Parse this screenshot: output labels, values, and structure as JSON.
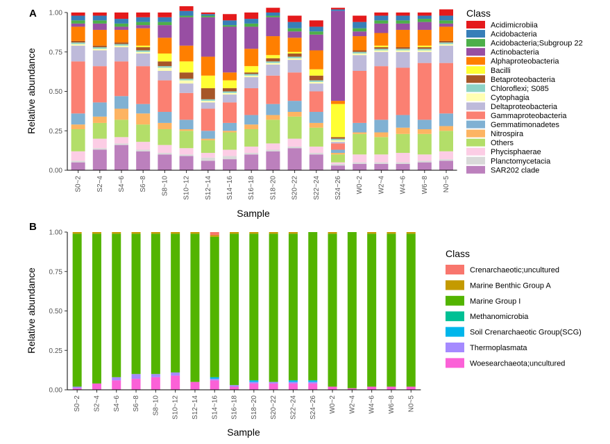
{
  "colors": {
    "Acidimicrobiia": "#e41a1c",
    "Acidobacteria": "#377eb8",
    "Acidobacteria;Subgroup 22": "#4daf4a",
    "Actinobacteria": "#984ea3",
    "Alphaproteobacteria": "#ff7f00",
    "Bacilli": "#ffff33",
    "Betaproteobacteria": "#a65628",
    "Chloroflexi; S085": "#8dd3c7",
    "Cytophagia": "#ffffb3",
    "Deltaproteobacteria": "#bebada",
    "Gammaproteobacteria": "#fb8072",
    "Gemmatimonadetes": "#80b1d3",
    "Nitrospira": "#fdb462",
    "Others": "#b3de69",
    "Phycisphaerae": "#fccde5",
    "Planctomycetacia": "#d9d9d9",
    "SAR202 clade": "#bc80bd",
    "Crenarchaeotic;uncultured": "#f8766d",
    "Marine Benthic Group A": "#c49a00",
    "Marine Group I": "#53b400",
    "Methanomicrobia": "#00c094",
    "Soil Crenarchaeotic Group(SCG)": "#00b6eb",
    "Thermoplasmata": "#a58aff",
    "Woesearchaeota;uncultured": "#fb61d7"
  },
  "chart_data": [
    {
      "type": "bar",
      "stacked": true,
      "panel": "A",
      "xlabel": "Sample",
      "ylabel": "Relative abundance",
      "ylim": [
        0,
        1
      ],
      "yticks": [
        "0.00",
        "0.25",
        "0.50",
        "0.75",
        "1.00"
      ],
      "categories": [
        "S0~2",
        "S2~4",
        "S4~6",
        "S6~8",
        "S8~10",
        "S10~12",
        "S12~14",
        "S14~16",
        "S16~18",
        "S18~20",
        "S20~22",
        "S22~24",
        "S24~26",
        "W0~2",
        "W2~4",
        "W4~6",
        "W6~8",
        "N0~5"
      ],
      "legend_title": "Class",
      "legend_order": [
        "Acidimicrobiia",
        "Acidobacteria",
        "Acidobacteria;Subgroup 22",
        "Actinobacteria",
        "Alphaproteobacteria",
        "Bacilli",
        "Betaproteobacteria",
        "Chloroflexi; S085",
        "Cytophagia",
        "Deltaproteobacteria",
        "Gammaproteobacteria",
        "Gemmatimonadetes",
        "Nitrospira",
        "Others",
        "Phycisphaerae",
        "Planctomycetacia",
        "SAR202 clade"
      ],
      "series": [
        {
          "name": "SAR202 clade",
          "values": [
            0.05,
            0.13,
            0.16,
            0.12,
            0.1,
            0.09,
            0.06,
            0.07,
            0.1,
            0.12,
            0.14,
            0.1,
            0.03,
            0.04,
            0.04,
            0.04,
            0.05,
            0.06
          ]
        },
        {
          "name": "Planctomycetacia",
          "values": [
            0.01,
            0.01,
            0.01,
            0.01,
            0.01,
            0.01,
            0.02,
            0.02,
            0.01,
            0.01,
            0.01,
            0.01,
            0.01,
            0.01,
            0.01,
            0.01,
            0.01,
            0.01
          ]
        },
        {
          "name": "Phycisphaerae",
          "values": [
            0.06,
            0.06,
            0.04,
            0.05,
            0.05,
            0.04,
            0.03,
            0.04,
            0.04,
            0.04,
            0.05,
            0.04,
            0.01,
            0.05,
            0.05,
            0.06,
            0.04,
            0.05
          ]
        },
        {
          "name": "Others",
          "values": [
            0.14,
            0.1,
            0.11,
            0.11,
            0.1,
            0.11,
            0.08,
            0.11,
            0.11,
            0.15,
            0.14,
            0.12,
            0.05,
            0.13,
            0.11,
            0.12,
            0.13,
            0.13
          ]
        },
        {
          "name": "Nitrospira",
          "values": [
            0.03,
            0.04,
            0.07,
            0.07,
            0.04,
            0.01,
            0.01,
            0.01,
            0.03,
            0.03,
            0.03,
            0.03,
            0.01,
            0.01,
            0.03,
            0.04,
            0.03,
            0.03
          ]
        },
        {
          "name": "Gemmatimonadetes",
          "values": [
            0.07,
            0.09,
            0.08,
            0.06,
            0.07,
            0.06,
            0.05,
            0.05,
            0.06,
            0.07,
            0.07,
            0.07,
            0.02,
            0.06,
            0.08,
            0.08,
            0.06,
            0.08
          ]
        },
        {
          "name": "Gammaproteobacteria",
          "values": [
            0.33,
            0.23,
            0.22,
            0.24,
            0.2,
            0.17,
            0.14,
            0.13,
            0.17,
            0.18,
            0.18,
            0.13,
            0.04,
            0.33,
            0.34,
            0.3,
            0.36,
            0.32
          ]
        },
        {
          "name": "Deltaproteobacteria",
          "values": [
            0.1,
            0.1,
            0.09,
            0.08,
            0.06,
            0.06,
            0.04,
            0.05,
            0.07,
            0.07,
            0.08,
            0.05,
            0.01,
            0.1,
            0.09,
            0.1,
            0.07,
            0.11
          ]
        },
        {
          "name": "Cytophagia",
          "values": [
            0.01,
            0.01,
            0.01,
            0.01,
            0.02,
            0.02,
            0.01,
            0.01,
            0.01,
            0.01,
            0.01,
            0.01,
            0.01,
            0.01,
            0.01,
            0.01,
            0.01,
            0.01
          ]
        },
        {
          "name": "Chloroflexi; S085",
          "values": [
            0.01,
            0.01,
            0.01,
            0.01,
            0.01,
            0.01,
            0.01,
            0.01,
            0.01,
            0.01,
            0.01,
            0.01,
            0.01,
            0.01,
            0.01,
            0.01,
            0.01,
            0.01
          ]
        },
        {
          "name": "Betaproteobacteria",
          "values": [
            0.01,
            0.01,
            0.01,
            0.02,
            0.03,
            0.04,
            0.07,
            0.02,
            0.01,
            0.02,
            0.02,
            0.03,
            0.01,
            0.01,
            0.01,
            0.01,
            0.01,
            0.01
          ]
        },
        {
          "name": "Bacilli",
          "values": [
            0.0,
            0.0,
            0.0,
            0.01,
            0.05,
            0.07,
            0.08,
            0.05,
            0.04,
            0.02,
            0.01,
            0.04,
            0.21,
            0.0,
            0.01,
            0.0,
            0.01,
            0.0
          ]
        },
        {
          "name": "Alphaproteobacteria",
          "values": [
            0.09,
            0.1,
            0.08,
            0.11,
            0.1,
            0.1,
            0.12,
            0.05,
            0.11,
            0.12,
            0.09,
            0.12,
            0.02,
            0.09,
            0.08,
            0.11,
            0.1,
            0.09
          ]
        },
        {
          "name": "Actinobacteria",
          "values": [
            0.02,
            0.04,
            0.02,
            0.02,
            0.08,
            0.18,
            0.25,
            0.29,
            0.14,
            0.12,
            0.04,
            0.1,
            0.57,
            0.03,
            0.06,
            0.04,
            0.05,
            0.02
          ]
        },
        {
          "name": "Acidobacteria;Subgroup 22",
          "values": [
            0.02,
            0.02,
            0.02,
            0.02,
            0.02,
            0.01,
            0.01,
            0.01,
            0.02,
            0.01,
            0.02,
            0.02,
            0.0,
            0.02,
            0.02,
            0.02,
            0.02,
            0.02
          ]
        },
        {
          "name": "Acidobacteria",
          "values": [
            0.03,
            0.03,
            0.03,
            0.03,
            0.03,
            0.03,
            0.01,
            0.03,
            0.03,
            0.02,
            0.04,
            0.03,
            0.01,
            0.04,
            0.03,
            0.03,
            0.02,
            0.03
          ]
        },
        {
          "name": "Acidimicrobiia",
          "values": [
            0.02,
            0.02,
            0.04,
            0.03,
            0.03,
            0.03,
            0.01,
            0.04,
            0.04,
            0.03,
            0.04,
            0.04,
            0.01,
            0.04,
            0.02,
            0.02,
            0.02,
            0.04
          ]
        }
      ]
    },
    {
      "type": "bar",
      "stacked": true,
      "panel": "B",
      "xlabel": "Sample",
      "ylabel": "Relative abundance",
      "ylim": [
        0,
        1
      ],
      "yticks": [
        "0.00",
        "0.25",
        "0.50",
        "0.75",
        "1.00"
      ],
      "categories": [
        "S0~2",
        "S2~4",
        "S4~6",
        "S6~8",
        "S8~10",
        "S10~12",
        "S12~14",
        "S14~16",
        "S16~18",
        "S18~20",
        "S20~22",
        "S22~24",
        "S24~26",
        "W0~2",
        "W2~4",
        "W4~6",
        "W6~8",
        "N0~5"
      ],
      "legend_title": "Class",
      "legend_order": [
        "Crenarchaeotic;uncultured",
        "Marine Benthic Group A",
        "Marine Group I",
        "Methanomicrobia",
        "Soil Crenarchaeotic Group(SCG)",
        "Thermoplasmata",
        "Woesearchaeota;uncultured"
      ],
      "series": [
        {
          "name": "Woesearchaeota;uncultured",
          "values": [
            0.01,
            0.04,
            0.06,
            0.07,
            0.08,
            0.09,
            0.05,
            0.06,
            0.02,
            0.04,
            0.04,
            0.04,
            0.04,
            0.02,
            0.01,
            0.02,
            0.02,
            0.02
          ]
        },
        {
          "name": "Thermoplasmata",
          "values": [
            0.01,
            0.0,
            0.02,
            0.03,
            0.02,
            0.02,
            0.0,
            0.01,
            0.01,
            0.01,
            0.01,
            0.01,
            0.01,
            0.0,
            0.0,
            0.0,
            0.0,
            0.0
          ]
        },
        {
          "name": "Soil Crenarchaeotic Group(SCG)",
          "values": [
            0.0,
            0.0,
            0.0,
            0.0,
            0.0,
            0.0,
            0.0,
            0.01,
            0.0,
            0.01,
            0.0,
            0.01,
            0.01,
            0.0,
            0.0,
            0.0,
            0.0,
            0.0
          ]
        },
        {
          "name": "Methanomicrobia",
          "values": [
            0.0,
            0.0,
            0.0,
            0.0,
            0.0,
            0.0,
            0.0,
            0.0,
            0.0,
            0.0,
            0.0,
            0.0,
            0.0,
            0.0,
            0.0,
            0.0,
            0.0,
            0.0
          ]
        },
        {
          "name": "Marine Group I",
          "values": [
            0.97,
            0.95,
            0.91,
            0.89,
            0.89,
            0.88,
            0.94,
            0.89,
            0.96,
            0.93,
            0.94,
            0.93,
            0.94,
            0.97,
            0.99,
            0.97,
            0.97,
            0.97
          ]
        },
        {
          "name": "Marine Benthic Group A",
          "values": [
            0.01,
            0.01,
            0.01,
            0.01,
            0.01,
            0.01,
            0.01,
            0.01,
            0.01,
            0.01,
            0.01,
            0.01,
            0.0,
            0.01,
            0.0,
            0.01,
            0.01,
            0.01
          ]
        },
        {
          "name": "Crenarchaeotic;uncultured",
          "values": [
            0.0,
            0.0,
            0.0,
            0.0,
            0.0,
            0.0,
            0.0,
            0.02,
            0.0,
            0.0,
            0.0,
            0.0,
            0.0,
            0.0,
            0.0,
            0.0,
            0.0,
            0.0
          ]
        }
      ]
    }
  ]
}
